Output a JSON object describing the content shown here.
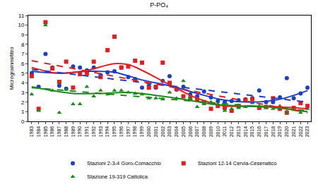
{
  "chart_data": {
    "type": "scatter",
    "title": "P-PO₄",
    "y_label": "Microgrammi/litro",
    "x": [
      1983,
      1984,
      1985,
      1986,
      1987,
      1988,
      1989,
      1990,
      1991,
      1992,
      1993,
      1994,
      1995,
      1996,
      1997,
      1998,
      1999,
      2000,
      2001,
      2002,
      2003,
      2004,
      2005,
      2006,
      2007,
      2008,
      2009,
      2010,
      2011,
      2012,
      2013,
      2014,
      2015,
      2016,
      2017,
      2018,
      2019,
      2020,
      2021,
      2022,
      2023
    ],
    "xlim": [
      1982.5,
      2023.5
    ],
    "xticks": [
      1983,
      1984,
      1985,
      1986,
      1987,
      1988,
      1989,
      1990,
      1991,
      1992,
      1993,
      1994,
      1995,
      1996,
      1997,
      1998,
      1999,
      2000,
      2001,
      2002,
      2003,
      2004,
      2005,
      2006,
      2007,
      2008,
      2009,
      2010,
      2011,
      2012,
      2013,
      2014,
      2015,
      2016,
      2017,
      2018,
      2019,
      2020,
      2021,
      2022,
      2023
    ],
    "ylim": [
      0,
      11
    ],
    "yticks": [
      0,
      1,
      2,
      3,
      4,
      5,
      6,
      7,
      8,
      9,
      10,
      11
    ],
    "grid": false,
    "legend": "bottom",
    "series": [
      {
        "name": "Stazioni 2-3-4 Goro-Comacchio",
        "type": "scatter",
        "marker": "circle",
        "color": "#1f3fbf",
        "values": [
          5.0,
          3.6,
          7.0,
          5.6,
          3.7,
          3.4,
          5.7,
          5.6,
          5.3,
          5.6,
          4.8,
          5.1,
          5.2,
          5.6,
          4.6,
          4.4,
          3.5,
          3.7,
          3.5,
          4.2,
          4.7,
          3.3,
          3.6,
          2.8,
          2.6,
          3.1,
          2.5,
          2.1,
          2.0,
          2.1,
          2.2,
          2.3,
          2.4,
          3.2,
          2.0,
          2.0,
          2.5,
          4.5,
          2.4,
          2.9,
          3.5
        ]
      },
      {
        "name": "Stazioni 12-14 Cervia-Cesenatico",
        "type": "scatter",
        "marker": "square",
        "color": "#e02020",
        "values": [
          4.7,
          1.3,
          10.3,
          5.5,
          4.1,
          6.2,
          3.5,
          4.9,
          5.0,
          6.2,
          4.6,
          7.4,
          8.8,
          5.6,
          5.7,
          6.3,
          6.1,
          3.5,
          3.6,
          6.1,
          4.0,
          3.4,
          2.6,
          2.4,
          2.3,
          2.0,
          1.3,
          1.6,
          1.4,
          1.1,
          1.6,
          2.2,
          2.3,
          1.4,
          1.5,
          2.4,
          1.3,
          0.9,
          1.4,
          1.9,
          1.6
        ]
      },
      {
        "name": "Stazione 19-319 Cattolica",
        "type": "scatter",
        "marker": "triangle-up",
        "color": "#1a8a1a",
        "values": [
          2.8,
          1.1,
          10.0,
          3.2,
          0.9,
          3.3,
          1.8,
          1.8,
          3.6,
          2.6,
          3.2,
          2.8,
          3.2,
          3.2,
          3.0,
          2.9,
          2.8,
          2.4,
          2.4,
          2.3,
          3.0,
          2.4,
          4.2,
          2.4,
          1.5,
          1.8,
          2.0,
          1.8,
          1.1,
          1.3,
          1.4,
          1.5,
          1.9,
          1.6,
          1.4,
          1.3,
          1.6,
          1.0,
          1.2,
          0.9,
          1.3
        ]
      },
      {
        "name": "Stazioni 2-3-4 Goro-Comacchio",
        "type": "line",
        "line_style": "solid",
        "color": "#1f3fbf",
        "x": [
          1983,
          1987,
          1991,
          1995,
          1999,
          2003,
          2007,
          2011,
          2015,
          2019,
          2023
        ],
        "values": [
          5.2,
          5.0,
          5.2,
          5.1,
          4.3,
          3.7,
          2.9,
          2.2,
          2.0,
          2.3,
          3.2
        ]
      },
      {
        "name": "Stazioni 12-14 Cervia-Cesenatico",
        "type": "line",
        "line_style": "solid",
        "color": "#e02020",
        "x": [
          1983,
          1987,
          1991,
          1995,
          1997,
          1999,
          2003,
          2007,
          2011,
          2015,
          2019,
          2023
        ],
        "values": [
          5.6,
          5.0,
          5.3,
          6.0,
          5.9,
          5.3,
          3.8,
          2.4,
          1.6,
          1.6,
          1.5,
          1.3
        ]
      },
      {
        "name": "Stazione 19-319 Cattolica",
        "type": "line",
        "line_style": "solid",
        "color": "#1a8a1a",
        "x": [
          1983,
          1986,
          1989,
          1993,
          1997,
          2001,
          2005,
          2009,
          2013,
          2017,
          2021,
          2023
        ],
        "values": [
          3.6,
          3.2,
          2.9,
          2.9,
          3.0,
          2.7,
          2.3,
          1.8,
          1.6,
          1.5,
          1.2,
          1.0
        ]
      },
      {
        "name": "Stazioni 2-3-4 Goro-Comacchio",
        "type": "line",
        "line_style": "dashed",
        "color": "#1f3fbf",
        "x": [
          1983,
          2023
        ],
        "values": [
          5.4,
          2.0
        ]
      },
      {
        "name": "Stazioni 12-14 Cervia-Cesenatico",
        "type": "line",
        "line_style": "dashed",
        "color": "#e02020",
        "x": [
          1983,
          2023
        ],
        "values": [
          6.3,
          0.9
        ]
      },
      {
        "name": "Stazione 19-319 Cattolica",
        "type": "line",
        "line_style": "dashed",
        "color": "#1a8a1a",
        "x": [
          1983,
          2023
        ],
        "values": [
          3.5,
          1.1
        ]
      }
    ]
  }
}
